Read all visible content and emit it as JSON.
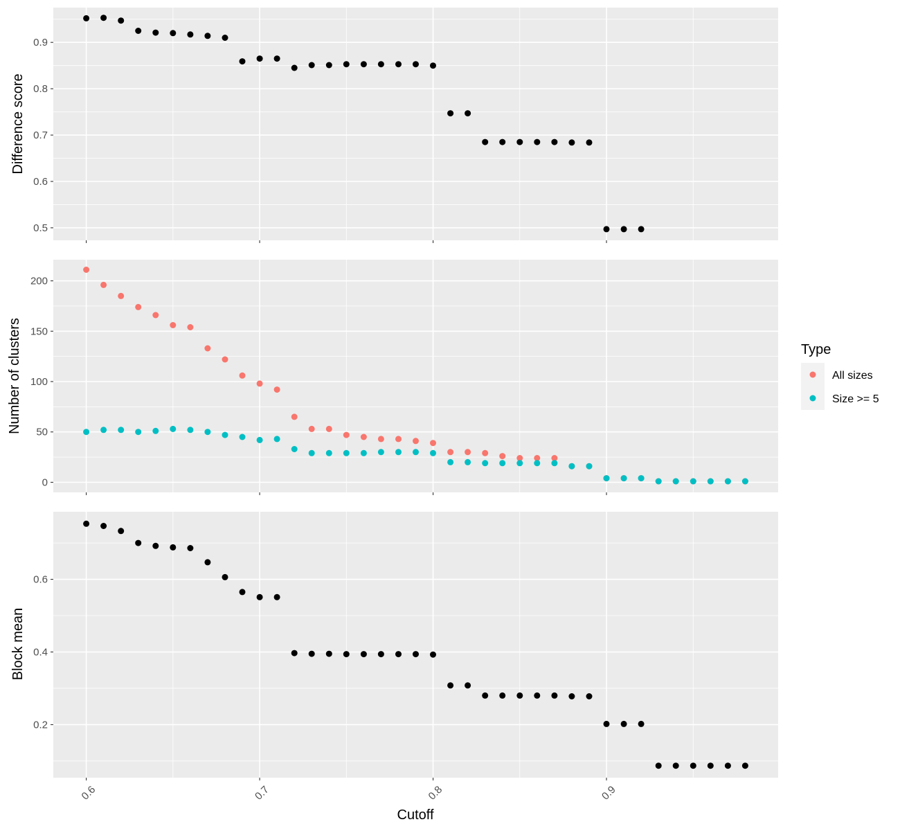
{
  "chart_data": {
    "type": "scatter",
    "xlabel": "Cutoff",
    "xlim": [
      0.581,
      0.999
    ],
    "x_ticks": [
      0.6,
      0.7,
      0.8,
      0.9
    ],
    "x_tick_labels": [
      "0.6",
      "0.7",
      "0.8",
      "0.9"
    ],
    "colors": {
      "default": "#000000",
      "All sizes": "#F8766D",
      "Size >= 5": "#00BFC4"
    },
    "legend": {
      "title": "Type",
      "position": "right",
      "entries": [
        "All sizes",
        "Size >= 5"
      ]
    },
    "panels": [
      {
        "id": "difference",
        "ylabel": "Difference score",
        "ylim": [
          0.473,
          0.975
        ],
        "y_ticks": [
          0.5,
          0.6,
          0.7,
          0.8,
          0.9
        ],
        "y_tick_labels": [
          "0.5",
          "0.6",
          "0.7",
          "0.8",
          "0.9"
        ],
        "series": [
          {
            "x": [
              0.6,
              0.61,
              0.62,
              0.63,
              0.64,
              0.65,
              0.66,
              0.67,
              0.68,
              0.69,
              0.7,
              0.71,
              0.72,
              0.73,
              0.74,
              0.75,
              0.76,
              0.77,
              0.78,
              0.79,
              0.8,
              0.81,
              0.82,
              0.83,
              0.84,
              0.85,
              0.86,
              0.87,
              0.88,
              0.89,
              0.9,
              0.91,
              0.92
            ],
            "values": [
              0.952,
              0.953,
              0.947,
              0.925,
              0.921,
              0.92,
              0.917,
              0.914,
              0.91,
              0.859,
              0.865,
              0.865,
              0.845,
              0.851,
              0.851,
              0.853,
              0.853,
              0.853,
              0.853,
              0.853,
              0.85,
              0.747,
              0.747,
              0.685,
              0.685,
              0.685,
              0.685,
              0.685,
              0.684,
              0.684,
              0.497,
              0.497,
              0.497
            ]
          }
        ]
      },
      {
        "id": "clusters",
        "ylabel": "Number of clusters",
        "ylim": [
          -10,
          221
        ],
        "y_ticks": [
          0,
          50,
          100,
          150,
          200
        ],
        "y_tick_labels": [
          "0",
          "50",
          "100",
          "150",
          "200"
        ],
        "series": [
          {
            "name": "All sizes",
            "x": [
              0.6,
              0.61,
              0.62,
              0.63,
              0.64,
              0.65,
              0.66,
              0.67,
              0.68,
              0.69,
              0.7,
              0.71,
              0.72,
              0.73,
              0.74,
              0.75,
              0.76,
              0.77,
              0.78,
              0.79,
              0.8,
              0.81,
              0.82,
              0.83,
              0.84,
              0.85,
              0.86,
              0.87,
              0.88,
              0.89,
              0.9,
              0.91,
              0.92,
              0.93,
              0.94,
              0.95,
              0.96,
              0.97,
              0.98
            ],
            "values": [
              211,
              196,
              185,
              174,
              166,
              156,
              154,
              133,
              122,
              106,
              98,
              92,
              65,
              53,
              53,
              47,
              45,
              43,
              43,
              41,
              39,
              30,
              30,
              29,
              26,
              24,
              24,
              24,
              16,
              16,
              4,
              4,
              4,
              1,
              1,
              1,
              1,
              1,
              1
            ]
          },
          {
            "name": "Size >= 5",
            "x": [
              0.6,
              0.61,
              0.62,
              0.63,
              0.64,
              0.65,
              0.66,
              0.67,
              0.68,
              0.69,
              0.7,
              0.71,
              0.72,
              0.73,
              0.74,
              0.75,
              0.76,
              0.77,
              0.78,
              0.79,
              0.8,
              0.81,
              0.82,
              0.83,
              0.84,
              0.85,
              0.86,
              0.87,
              0.88,
              0.89,
              0.9,
              0.91,
              0.92,
              0.93,
              0.94,
              0.95,
              0.96,
              0.97,
              0.98
            ],
            "values": [
              50,
              52,
              52,
              50,
              51,
              53,
              52,
              50,
              47,
              45,
              42,
              43,
              33,
              29,
              29,
              29,
              29,
              30,
              30,
              30,
              29,
              20,
              20,
              19,
              19,
              19,
              19,
              19,
              16,
              16,
              4,
              4,
              4,
              1,
              1,
              1,
              1,
              1,
              1
            ]
          }
        ]
      },
      {
        "id": "block",
        "ylabel": "Block mean",
        "ylim": [
          0.054,
          0.786
        ],
        "y_ticks": [
          0.2,
          0.4,
          0.6
        ],
        "y_tick_labels": [
          "0.2",
          "0.4",
          "0.6"
        ],
        "series": [
          {
            "x": [
              0.6,
              0.61,
              0.62,
              0.63,
              0.64,
              0.65,
              0.66,
              0.67,
              0.68,
              0.69,
              0.7,
              0.71,
              0.72,
              0.73,
              0.74,
              0.75,
              0.76,
              0.77,
              0.78,
              0.79,
              0.8,
              0.81,
              0.82,
              0.83,
              0.84,
              0.85,
              0.86,
              0.87,
              0.88,
              0.89,
              0.9,
              0.91,
              0.92,
              0.93,
              0.94,
              0.95,
              0.96,
              0.97,
              0.98
            ],
            "values": [
              0.753,
              0.747,
              0.733,
              0.7,
              0.692,
              0.688,
              0.686,
              0.647,
              0.606,
              0.565,
              0.551,
              0.551,
              0.397,
              0.395,
              0.395,
              0.394,
              0.394,
              0.394,
              0.394,
              0.394,
              0.393,
              0.308,
              0.308,
              0.28,
              0.28,
              0.28,
              0.28,
              0.28,
              0.278,
              0.278,
              0.202,
              0.202,
              0.202,
              0.087,
              0.087,
              0.087,
              0.087,
              0.087,
              0.087
            ]
          }
        ]
      }
    ]
  }
}
